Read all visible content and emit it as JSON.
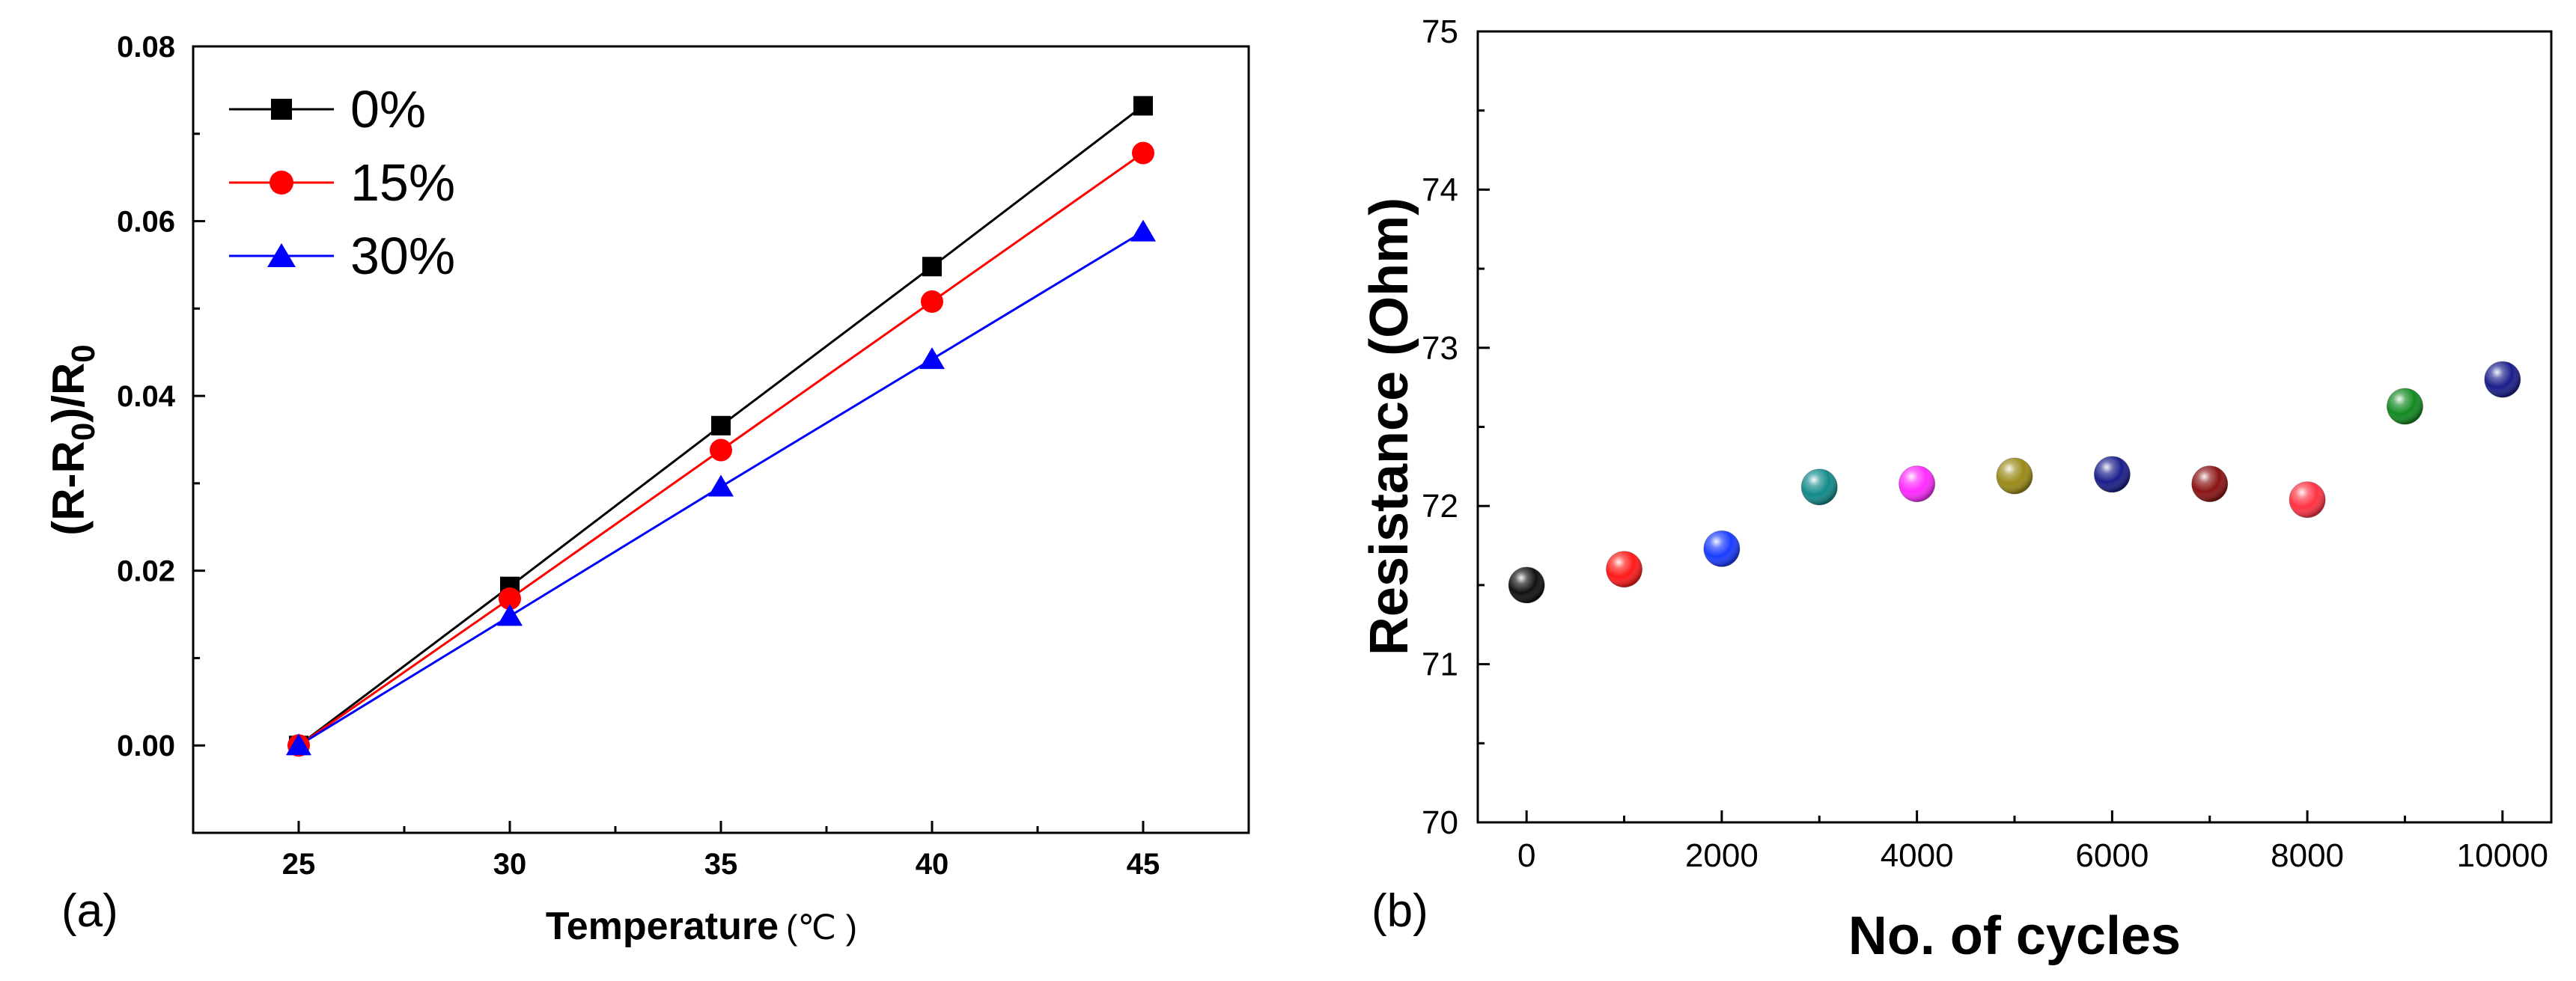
{
  "chart_data": [
    {
      "panel_label": "(a)",
      "type": "line",
      "xlabel": "Temperature",
      "xlabel_unit": "(℃ )",
      "ylabel_parts": [
        "(R-R",
        "0",
        ")/R",
        "0"
      ],
      "x": [
        25,
        30,
        35,
        40,
        45
      ],
      "xlim": [
        22.5,
        47.5
      ],
      "ylim": [
        -0.01,
        0.08
      ],
      "xticks": [
        25,
        30,
        35,
        40,
        45
      ],
      "yticks": [
        "0.00",
        "0.02",
        "0.04",
        "0.06",
        "0.08"
      ],
      "legend_position": "top-left",
      "series": [
        {
          "name": "0%",
          "color": "#000000",
          "marker": "square",
          "values": [
            0.0,
            0.0182,
            0.0366,
            0.0548,
            0.0732
          ]
        },
        {
          "name": "15%",
          "color": "#ff0000",
          "marker": "circle",
          "values": [
            0.0,
            0.0168,
            0.0338,
            0.0508,
            0.0678
          ]
        },
        {
          "name": "30%",
          "color": "#0000ff",
          "marker": "triangle",
          "values": [
            0.0,
            0.0148,
            0.0296,
            0.0442,
            0.0588
          ]
        }
      ]
    },
    {
      "panel_label": "(b)",
      "type": "scatter",
      "xlabel": "No. of cycles",
      "ylabel": "Resistance (Ohm)",
      "xlim": [
        -500,
        10500
      ],
      "ylim": [
        70,
        75
      ],
      "xticks": [
        0,
        2000,
        4000,
        6000,
        8000,
        10000
      ],
      "yticks": [
        70,
        71,
        72,
        73,
        74,
        75
      ],
      "points": [
        {
          "x": 0,
          "y": 71.5,
          "color": "#111111"
        },
        {
          "x": 1000,
          "y": 71.6,
          "color": "#ff1a1a"
        },
        {
          "x": 2000,
          "y": 71.73,
          "color": "#1a3cff"
        },
        {
          "x": 3000,
          "y": 72.12,
          "color": "#138a8a"
        },
        {
          "x": 4000,
          "y": 72.14,
          "color": "#ff2bff"
        },
        {
          "x": 5000,
          "y": 72.19,
          "color": "#9a8a18"
        },
        {
          "x": 6000,
          "y": 72.2,
          "color": "#1a1f8a"
        },
        {
          "x": 7000,
          "y": 72.14,
          "color": "#8a1414"
        },
        {
          "x": 8000,
          "y": 72.04,
          "color": "#ff3344"
        },
        {
          "x": 9000,
          "y": 72.63,
          "color": "#138a22"
        },
        {
          "x": 10000,
          "y": 72.8,
          "color": "#1a1f8a"
        }
      ]
    }
  ]
}
